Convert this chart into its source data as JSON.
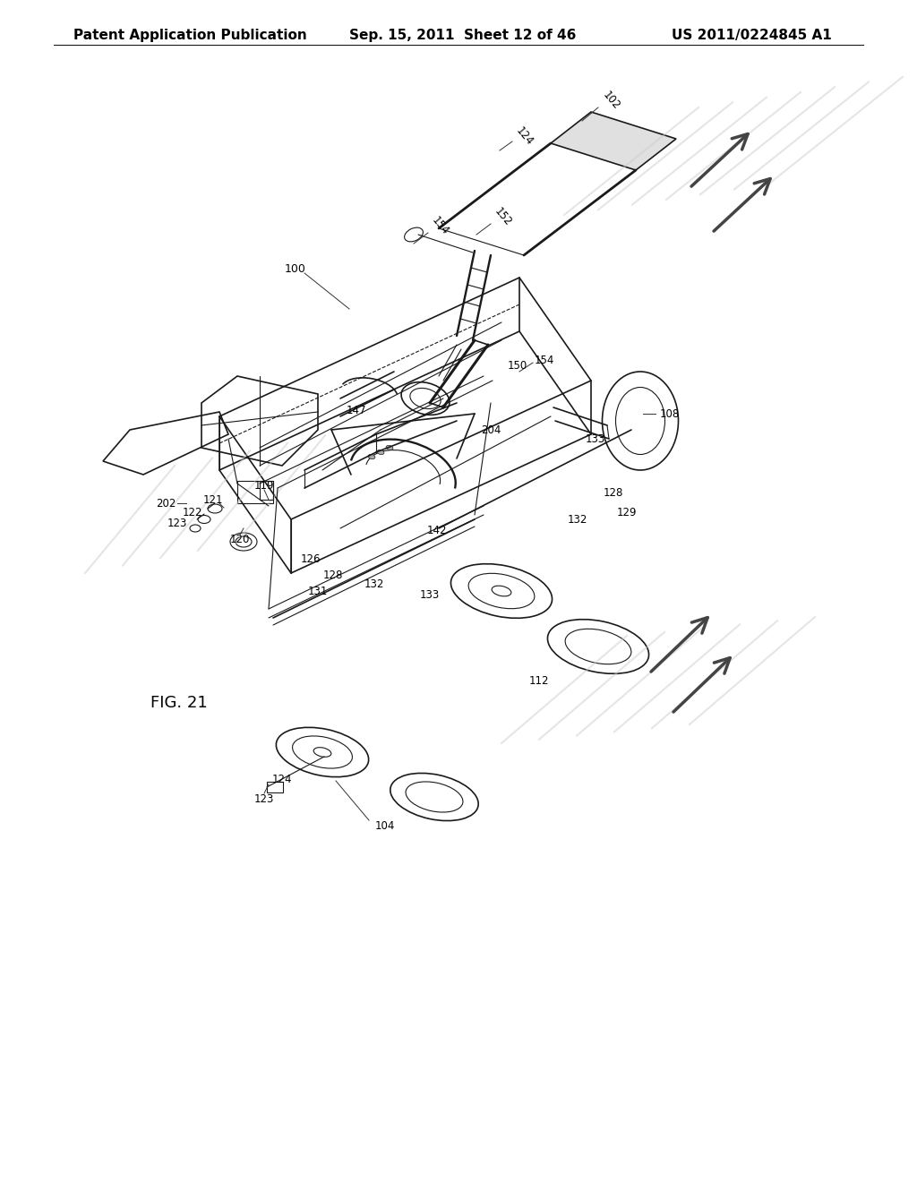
{
  "header_left": "Patent Application Publication",
  "header_mid": "Sep. 15, 2011  Sheet 12 of 46",
  "header_right": "US 2011/0224845 A1",
  "figure_label": "FIG. 21",
  "bg_color": "#ffffff",
  "header_font_size": 11,
  "line_color": "#1a1a1a",
  "label_color": "#000000"
}
